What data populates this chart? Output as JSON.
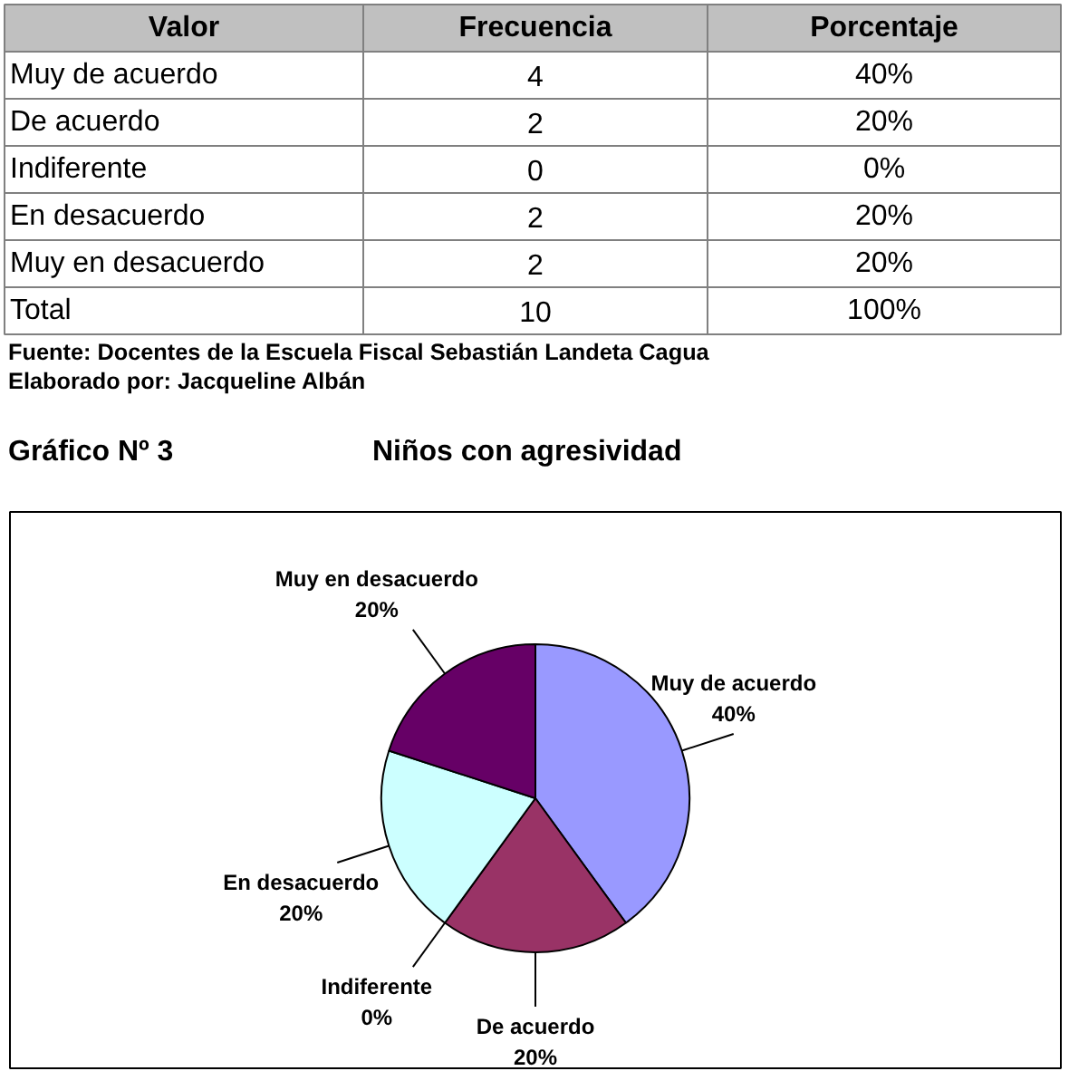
{
  "chart_data": {
    "type": "pie",
    "title": "Niños con agresividad",
    "subtitle": "Gráfico Nº 3",
    "categories": [
      "Muy de acuerdo",
      "De acuerdo",
      "Indiferente",
      "En desacuerdo",
      "Muy en desacuerdo"
    ],
    "values": [
      40,
      20,
      0,
      20,
      20
    ],
    "value_labels": [
      "40%",
      "20%",
      "0%",
      "20%",
      "20%"
    ],
    "colors": [
      "#9999ff",
      "#993366",
      "#ffffcc",
      "#ccffff",
      "#660066"
    ],
    "annotations": [
      "Valor",
      "Frecuencia",
      "Porcentaje",
      "Muy de acuerdo",
      "4",
      "40%",
      "De acuerdo",
      "2",
      "20%",
      "Indiferente",
      "0",
      "0%",
      "En desacuerdo",
      "2",
      "20%",
      "Muy en desacuerdo",
      "2",
      "20%",
      "Total",
      "10",
      "100%",
      "Fuente: Docentes de la Escuela Fiscal Sebastián Landeta Cagua",
      "Elaborado por: Jacqueline Albán"
    ]
  }
}
